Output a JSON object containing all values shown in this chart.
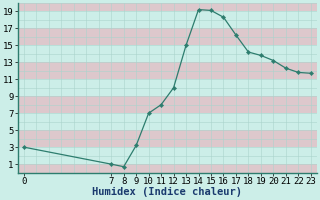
{
  "x": [
    0,
    7,
    8,
    9,
    10,
    11,
    12,
    13,
    14,
    15,
    16,
    17,
    18,
    19,
    20,
    21,
    22,
    23
  ],
  "y": [
    3,
    1,
    0.7,
    3.2,
    7,
    8,
    10,
    15,
    19.2,
    19.1,
    18.3,
    16.2,
    14.2,
    13.8,
    13.2,
    12.3,
    11.8,
    11.7
  ],
  "line_color": "#2d7d6e",
  "marker_color": "#2d7d6e",
  "bg_color": "#cceee8",
  "band_color_pink": "#ddc8cc",
  "band_color_teal": "#cceee8",
  "xlabel": "Humidex (Indice chaleur)",
  "xlim": [
    -0.5,
    23.5
  ],
  "ylim": [
    0,
    20
  ],
  "yticks": [
    1,
    3,
    5,
    7,
    9,
    11,
    13,
    15,
    17,
    19
  ],
  "xticks": [
    0,
    7,
    8,
    9,
    10,
    11,
    12,
    13,
    14,
    15,
    16,
    17,
    18,
    19,
    20,
    21,
    22,
    23
  ],
  "font_size": 6.5,
  "xlabel_fontsize": 7.5,
  "figsize": [
    3.2,
    2.0
  ],
  "dpi": 100
}
